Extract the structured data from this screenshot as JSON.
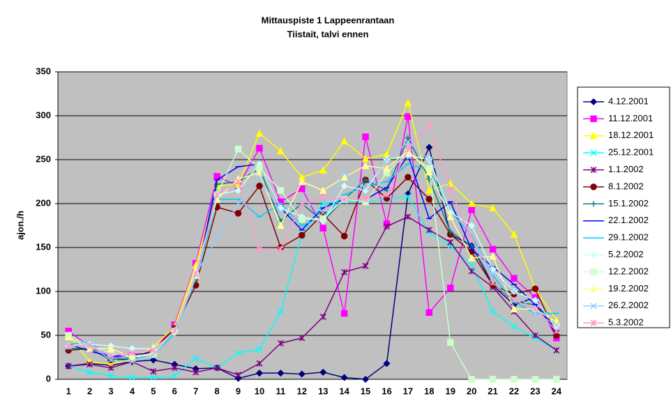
{
  "chart_data": {
    "type": "line",
    "title": "Mittauspiste 1 Lappeenrantaan",
    "subtitle": "Tiistait, talvi ennen",
    "y_label": "ajon./h",
    "categories": [
      1,
      2,
      3,
      4,
      5,
      6,
      7,
      8,
      9,
      10,
      11,
      12,
      13,
      14,
      15,
      16,
      17,
      18,
      19,
      20,
      21,
      22,
      23,
      24
    ],
    "ylim": [
      0,
      350
    ],
    "yticks": [
      0,
      50,
      100,
      150,
      200,
      250,
      300,
      350
    ],
    "grid": true,
    "legend": "right",
    "series": [
      {
        "name": "4.12.2001",
        "color": "#000080",
        "marker": "diamond",
        "values": [
          15,
          18,
          16,
          20,
          22,
          17,
          12,
          13,
          1,
          7,
          7,
          6,
          8,
          2,
          0,
          18,
          211,
          264,
          165,
          152,
          107,
          85,
          93,
          50
        ]
      },
      {
        "name": "11.12.2001",
        "color": "#ff00ff",
        "marker": "square",
        "values": [
          55,
          37,
          25,
          27,
          32,
          62,
          132,
          231,
          220,
          263,
          202,
          217,
          172,
          75,
          276,
          177,
          299,
          76,
          104,
          193,
          148,
          115,
          93,
          47
        ]
      },
      {
        "name": "18.12.2001",
        "color": "#ffff00",
        "marker": "triangle",
        "values": [
          50,
          20,
          17,
          23,
          37,
          60,
          130,
          220,
          222,
          280,
          260,
          230,
          238,
          271,
          251,
          256,
          315,
          215,
          223,
          200,
          195,
          165,
          103,
          67
        ]
      },
      {
        "name": "25.12.2001",
        "color": "#00ffff",
        "marker": "x",
        "values": [
          15,
          8,
          4,
          2,
          2,
          4,
          24,
          13,
          30,
          34,
          77,
          165,
          200,
          203,
          202,
          205,
          208,
          167,
          152,
          130,
          77,
          60,
          47,
          33
        ]
      },
      {
        "name": "1.1.2002",
        "color": "#800080",
        "marker": "star",
        "values": [
          15,
          17,
          13,
          20,
          9,
          13,
          8,
          13,
          5,
          18,
          41,
          47,
          71,
          122,
          129,
          174,
          185,
          170,
          156,
          123,
          105,
          77,
          50,
          33
        ]
      },
      {
        "name": "8.1.2002",
        "color": "#800000",
        "marker": "circle",
        "values": [
          33,
          35,
          22,
          23,
          33,
          58,
          107,
          196,
          189,
          220,
          150,
          164,
          188,
          163,
          227,
          206,
          230,
          205,
          165,
          145,
          107,
          97,
          103,
          50
        ]
      },
      {
        "name": "15.1.2002",
        "color": "#008080",
        "marker": "plus",
        "values": [
          35,
          35,
          22,
          25,
          30,
          57,
          115,
          222,
          225,
          240,
          180,
          200,
          180,
          205,
          227,
          215,
          275,
          228,
          168,
          152,
          110,
          88,
          85,
          62
        ]
      },
      {
        "name": "22.1.2002",
        "color": "#0000ff",
        "marker": "dash",
        "values": [
          40,
          32,
          26,
          28,
          30,
          55,
          115,
          227,
          242,
          245,
          195,
          170,
          195,
          205,
          205,
          218,
          255,
          183,
          202,
          148,
          128,
          108,
          85,
          55
        ]
      },
      {
        "name": "29.1.2002",
        "color": "#00ccff",
        "marker": "dash",
        "values": [
          40,
          42,
          25,
          23,
          28,
          52,
          115,
          205,
          205,
          185,
          200,
          175,
          185,
          210,
          220,
          225,
          245,
          238,
          192,
          163,
          118,
          88,
          75,
          75
        ]
      },
      {
        "name": "5.2.2002",
        "color": "#ccffff",
        "marker": "diamond",
        "values": [
          38,
          40,
          38,
          35,
          35,
          53,
          118,
          210,
          215,
          245,
          195,
          185,
          180,
          220,
          215,
          250,
          255,
          250,
          190,
          175,
          125,
          100,
          90,
          60
        ]
      },
      {
        "name": "12.2.2002",
        "color": "#ccffcc",
        "marker": "square",
        "values": [
          50,
          38,
          30,
          25,
          28,
          55,
          118,
          210,
          262,
          240,
          215,
          182,
          183,
          205,
          202,
          235,
          258,
          240,
          42,
          0,
          0,
          0,
          0,
          0
        ]
      },
      {
        "name": "19.2.2002",
        "color": "#ffff99",
        "marker": "triangle",
        "values": [
          48,
          35,
          35,
          25,
          30,
          55,
          125,
          205,
          228,
          235,
          175,
          225,
          215,
          230,
          243,
          240,
          260,
          236,
          185,
          138,
          140,
          80,
          80,
          65
        ]
      },
      {
        "name": "26.2.2002",
        "color": "#99ccff",
        "marker": "x",
        "values": [
          37,
          40,
          22,
          20,
          28,
          55,
          120,
          160,
          200,
          230,
          190,
          205,
          190,
          235,
          218,
          250,
          270,
          250,
          215,
          160,
          120,
          100,
          75,
          62
        ]
      },
      {
        "name": "5.3.2002",
        "color": "#ff99cc",
        "marker": "star",
        "values": [
          38,
          38,
          27,
          30,
          33,
          55,
          120,
          210,
          225,
          148,
          148,
          200,
          207,
          205,
          205,
          210,
          262,
          290,
          215,
          160,
          110,
          90,
          80,
          55
        ]
      }
    ]
  }
}
